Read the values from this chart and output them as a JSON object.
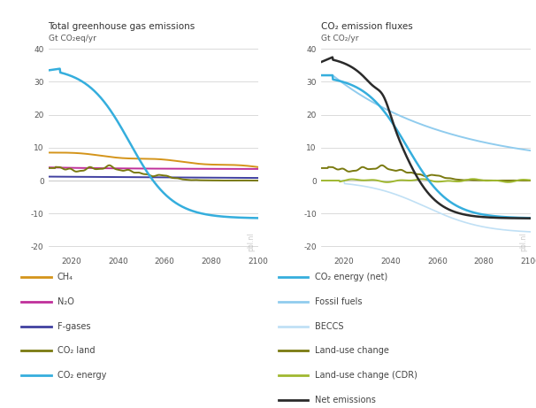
{
  "title_left": "Total greenhouse gas emissions",
  "title_right": "CO₂ emission fluxes",
  "ylabel_left": "Gt CO₂eq/yr",
  "ylabel_right": "Gt CO₂/yr",
  "xlim": [
    2010,
    2100
  ],
  "ylim": [
    -22,
    40
  ],
  "yticks": [
    -20,
    -10,
    0,
    10,
    20,
    30,
    40
  ],
  "xticks": [
    2020,
    2040,
    2060,
    2080,
    2100
  ],
  "left_lines": {
    "ch4": {
      "color": "#D4941A",
      "lw": 1.4
    },
    "n2o": {
      "color": "#C0309A",
      "lw": 1.4
    },
    "fgas": {
      "color": "#4040A0",
      "lw": 1.4
    },
    "co2land": {
      "color": "#7A7A10",
      "lw": 1.4
    },
    "co2en": {
      "color": "#35AEDD",
      "lw": 1.8
    }
  },
  "right_lines": {
    "co2en_net": {
      "color": "#35AEDD",
      "lw": 1.8
    },
    "fossil": {
      "color": "#90CCEE",
      "lw": 1.4
    },
    "beccs": {
      "color": "#C0E0F5",
      "lw": 1.2
    },
    "luc": {
      "color": "#7A7A10",
      "lw": 1.4
    },
    "luc_cdr": {
      "color": "#A0B830",
      "lw": 1.4
    },
    "net": {
      "color": "#2A2A2A",
      "lw": 1.8
    }
  },
  "legend_left": [
    {
      "label": "CH₄",
      "color": "#D4941A"
    },
    {
      "label": "N₂O",
      "color": "#C0309A"
    },
    {
      "label": "F-gases",
      "color": "#4040A0"
    },
    {
      "label": "CO₂ land",
      "color": "#7A7A10"
    },
    {
      "label": "CO₂ energy",
      "color": "#35AEDD"
    }
  ],
  "legend_right": [
    {
      "label": "CO₂ energy (net)",
      "color": "#35AEDD"
    },
    {
      "label": "Fossil fuels",
      "color": "#90CCEE"
    },
    {
      "label": "BECCS",
      "color": "#C0E0F5"
    },
    {
      "label": "Land-use change",
      "color": "#7A7A10"
    },
    {
      "label": "Land-use change (CDR)",
      "color": "#A0B830"
    },
    {
      "label": "Net emissions",
      "color": "#2A2A2A"
    }
  ],
  "watermark": "pbl.nl",
  "bg_color": "#FFFFFF",
  "grid_color": "#CCCCCC",
  "text_color": "#555555",
  "title_color": "#333333"
}
